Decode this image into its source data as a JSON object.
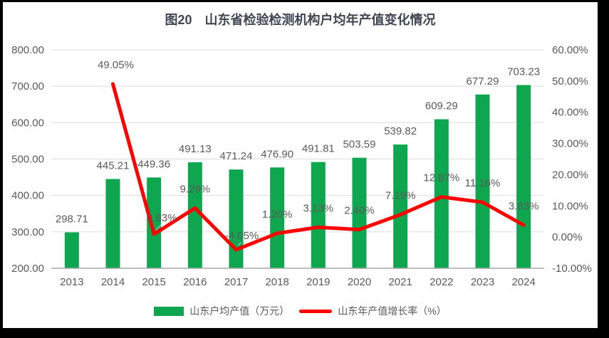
{
  "colors": {
    "frame": "#000000",
    "surface": "#FFFFFF",
    "bar": "#0EA750",
    "line": "#FF0000",
    "grid": "#DCDCDC",
    "axis_line": "#A6A6A6",
    "label": "#595959",
    "title": "#3F4553",
    "leader": "#BFBFBF"
  },
  "chart_data": {
    "type": "combo-bar-line",
    "title": "图20　山东省检验检测机构户均年产值变化情况",
    "categories": [
      "2013",
      "2014",
      "2015",
      "2016",
      "2017",
      "2018",
      "2019",
      "2020",
      "2021",
      "2022",
      "2023",
      "2024"
    ],
    "series": [
      {
        "name": "山东户均产值（万元）",
        "type": "bar",
        "axis": "left",
        "color": "#0EA750",
        "values": [
          298.71,
          445.21,
          449.36,
          491.13,
          471.24,
          476.9,
          491.81,
          503.59,
          539.82,
          609.29,
          677.29,
          703.23
        ],
        "labels": [
          "298.71",
          "445.21",
          "449.36",
          "491.13",
          "471.24",
          "476.90",
          "491.81",
          "503.59",
          "539.82",
          "609.29",
          "677.29",
          "703.23"
        ]
      },
      {
        "name": "山东年产值增长率（%）",
        "type": "line",
        "axis": "right",
        "color": "#FF0000",
        "values": [
          null,
          49.05,
          0.93,
          9.29,
          -4.05,
          1.2,
          3.13,
          2.4,
          7.19,
          12.87,
          11.16,
          3.83
        ],
        "labels": [
          null,
          "49.05%",
          "0.93%",
          "9.29%",
          "-4.05%",
          "1.20%",
          "3.13%",
          "2.40%",
          "7.19%",
          "12.87%",
          "11.16%",
          "3.83%"
        ],
        "label_offsets": {
          "1": {
            "dx": 4,
            "dy": -22
          },
          "2": {
            "dx": 11,
            "dy": -18,
            "leader": true
          },
          "4": {
            "dx": 8,
            "dy": -15,
            "leader": true
          }
        }
      }
    ],
    "left_axis": {
      "min": 200,
      "max": 800,
      "step": 100,
      "tick_labels": [
        "800.00",
        "700.00",
        "600.00",
        "500.00",
        "400.00",
        "300.00",
        "200.00"
      ]
    },
    "right_axis": {
      "min": -10,
      "max": 60,
      "step": 10,
      "tick_labels": [
        "60.00%",
        "50.00%",
        "40.00%",
        "30.00%",
        "20.00%",
        "10.00%",
        "0.00%",
        "-10.00%"
      ]
    },
    "grid": true,
    "legend_position": "bottom"
  },
  "legend": {
    "items": [
      {
        "label": "山东户均产值（万元）",
        "swatch": "bar-swatch"
      },
      {
        "label": "山东年产值增长率（%）",
        "swatch": "line-swatch"
      }
    ]
  }
}
